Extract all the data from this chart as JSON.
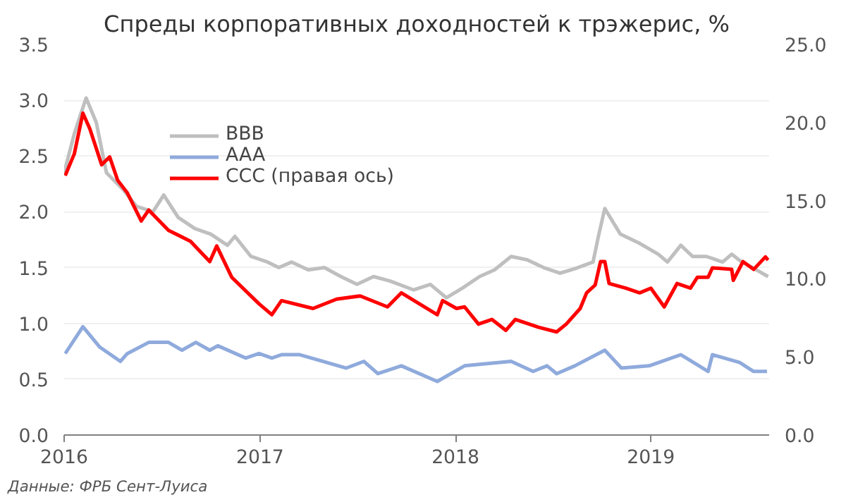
{
  "chart_data": {
    "type": "line",
    "title": "Спреды корпоративных доходностей к трэжерис, %",
    "xlim": [
      "2016-01-01",
      "2019-08-10"
    ],
    "xticks": [
      "2016",
      "2017",
      "2018",
      "2019"
    ],
    "ylim": [
      0,
      3.5
    ],
    "yticks": [
      {
        "value": 0,
        "label": "0.0"
      },
      0.5,
      {
        "value": 1,
        "label": "1.0"
      },
      1.5,
      {
        "value": 2,
        "label": "2.0"
      },
      2.5,
      {
        "value": 3,
        "label": "3.0"
      },
      3.5
    ],
    "y2lim": [
      0,
      25
    ],
    "y2ticks": [
      {
        "value": 0,
        "label": "0.0"
      },
      {
        "value": 5,
        "label": "5.0"
      },
      {
        "value": 10,
        "label": "10.0"
      },
      {
        "value": 15,
        "label": "15.0"
      },
      {
        "value": 20,
        "label": "20.0"
      },
      {
        "value": 25,
        "label": "25.0"
      }
    ],
    "grid": "y",
    "legend": "top left",
    "annotations": [
      "Данные: ФРБ Сент-Луиса"
    ],
    "series": [
      {
        "name": "BBB",
        "color": "#bfbfbf",
        "x": [
          "2016-01-01",
          "2016-01-20",
          "2016-02-11",
          "2016-03-01",
          "2016-03-20",
          "2016-04-20",
          "2016-05-15",
          "2016-06-15",
          "2016-07-05",
          "2016-08-01",
          "2016-09-01",
          "2016-10-01",
          "2016-11-01",
          "2016-11-15",
          "2016-12-15",
          "2017-01-15",
          "2017-02-05",
          "2017-03-01",
          "2017-04-01",
          "2017-05-01",
          "2017-06-01",
          "2017-07-01",
          "2017-08-01",
          "2017-09-01",
          "2017-10-15",
          "2017-11-15",
          "2017-12-15",
          "2018-01-15",
          "2018-02-15",
          "2018-03-15",
          "2018-04-15",
          "2018-05-15",
          "2018-06-15",
          "2018-07-15",
          "2018-08-12",
          "2018-09-15",
          "2018-09-25",
          "2018-10-07",
          "2018-11-05",
          "2018-12-10",
          "2019-01-15",
          "2019-02-01",
          "2019-02-26",
          "2019-03-20",
          "2019-04-15",
          "2019-05-15",
          "2019-06-01",
          "2019-06-20",
          "2019-07-10",
          "2019-08-08"
        ],
        "values": [
          2.35,
          2.7,
          3.02,
          2.8,
          2.35,
          2.2,
          2.05,
          2.0,
          2.15,
          1.95,
          1.85,
          1.8,
          1.7,
          1.78,
          1.6,
          1.55,
          1.5,
          1.55,
          1.48,
          1.5,
          1.42,
          1.35,
          1.42,
          1.38,
          1.3,
          1.35,
          1.23,
          1.32,
          1.42,
          1.48,
          1.6,
          1.57,
          1.5,
          1.45,
          1.49,
          1.55,
          1.78,
          2.03,
          1.8,
          1.72,
          1.62,
          1.55,
          1.7,
          1.6,
          1.6,
          1.55,
          1.62,
          1.55,
          1.5,
          1.42
        ]
      },
      {
        "name": "AAA",
        "color": "#8faadc",
        "x": [
          "2016-01-03",
          "2016-02-05",
          "2016-03-07",
          "2016-04-15",
          "2016-04-28",
          "2016-06-07",
          "2016-07-14",
          "2016-08-08",
          "2016-09-03",
          "2016-09-29",
          "2016-10-14",
          "2016-12-05",
          "2016-12-30",
          "2017-01-23",
          "2017-02-10",
          "2017-03-16",
          "2017-06-11",
          "2017-07-14",
          "2017-08-09",
          "2017-09-22",
          "2017-11-28",
          "2018-01-18",
          "2018-04-15",
          "2018-05-26",
          "2018-06-21",
          "2018-07-09",
          "2018-08-12",
          "2018-10-07",
          "2018-11-07",
          "2018-12-29",
          "2019-02-26",
          "2019-04-18",
          "2019-04-26",
          "2019-06-16",
          "2019-07-12",
          "2019-08-06"
        ],
        "values": [
          0.73,
          0.97,
          0.79,
          0.66,
          0.73,
          0.83,
          0.83,
          0.76,
          0.83,
          0.76,
          0.8,
          0.69,
          0.73,
          0.69,
          0.72,
          0.72,
          0.6,
          0.66,
          0.55,
          0.62,
          0.48,
          0.62,
          0.66,
          0.57,
          0.62,
          0.55,
          0.62,
          0.76,
          0.6,
          0.62,
          0.72,
          0.57,
          0.72,
          0.65,
          0.57,
          0.57
        ]
      },
      {
        "name": "CCC (правая ось)",
        "color": "#ff0000",
        "axis": "y2",
        "x": [
          "2016-01-03",
          "2016-01-20",
          "2016-02-05",
          "2016-02-18",
          "2016-03-11",
          "2016-03-26",
          "2016-04-10",
          "2016-04-28",
          "2016-05-24",
          "2016-06-07",
          "2016-07-14",
          "2016-08-24",
          "2016-09-29",
          "2016-10-12",
          "2016-11-09",
          "2016-12-30",
          "2017-01-23",
          "2017-02-10",
          "2017-04-10",
          "2017-05-24",
          "2017-07-07",
          "2017-08-27",
          "2017-09-22",
          "2017-11-28",
          "2017-12-08",
          "2018-01-03",
          "2018-01-18",
          "2018-02-13",
          "2018-03-10",
          "2018-04-05",
          "2018-04-23",
          "2018-06-05",
          "2018-07-09",
          "2018-07-27",
          "2018-08-22",
          "2018-09-03",
          "2018-09-19",
          "2018-09-29",
          "2018-10-07",
          "2018-10-15",
          "2018-11-15",
          "2018-12-11",
          "2019-01-01",
          "2019-01-26",
          "2019-02-19",
          "2019-03-16",
          "2019-03-29",
          "2019-04-18",
          "2019-04-26",
          "2019-06-01",
          "2019-06-04",
          "2019-06-22",
          "2019-07-12",
          "2019-08-03",
          "2019-08-08"
        ],
        "values": [
          16.6,
          18.0,
          20.6,
          19.6,
          17.3,
          17.8,
          16.3,
          15.5,
          13.7,
          14.4,
          13.1,
          12.4,
          11.1,
          12.1,
          10.1,
          8.4,
          7.7,
          8.6,
          8.1,
          8.7,
          8.9,
          8.2,
          9.1,
          7.7,
          8.6,
          8.1,
          8.2,
          7.1,
          7.4,
          6.7,
          7.4,
          6.9,
          6.6,
          7.1,
          8.1,
          9.1,
          9.6,
          11.1,
          11.1,
          9.7,
          9.4,
          9.1,
          9.4,
          8.2,
          9.7,
          9.4,
          10.1,
          10.1,
          10.7,
          10.6,
          9.9,
          11.1,
          10.6,
          11.4,
          11.2
        ]
      }
    ]
  }
}
